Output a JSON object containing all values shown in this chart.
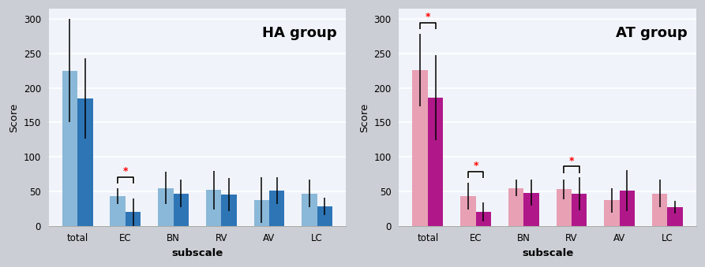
{
  "categories": [
    "total",
    "EC",
    "BN",
    "RV",
    "AV",
    "LC"
  ],
  "ha_pre": [
    225,
    43,
    55,
    52,
    37,
    47
  ],
  "ha_post": [
    185,
    20,
    47,
    45,
    51,
    28
  ],
  "ha_pre_err": [
    75,
    12,
    23,
    28,
    33,
    20
  ],
  "ha_post_err": [
    58,
    20,
    20,
    24,
    20,
    13
  ],
  "at_pre": [
    226,
    43,
    55,
    53,
    37,
    47
  ],
  "at_post": [
    186,
    20,
    48,
    46,
    51,
    27
  ],
  "at_pre_err": [
    53,
    20,
    12,
    14,
    18,
    20
  ],
  "at_post_err": [
    62,
    14,
    19,
    24,
    30,
    9
  ],
  "ha_color_pre": "#8ab8d8",
  "ha_color_post": "#2e75b6",
  "at_color_pre": "#e8a0b4",
  "at_color_post": "#b0188a",
  "ha_sig": [
    false,
    true,
    false,
    false,
    false,
    false
  ],
  "at_sig": [
    true,
    true,
    false,
    true,
    false,
    false
  ],
  "ha_title": "HA group",
  "at_title": "AT group",
  "ylabel": "Score",
  "xlabel": "subscale",
  "ylim": [
    0,
    315
  ],
  "yticks": [
    0,
    50,
    100,
    150,
    200,
    250,
    300
  ],
  "fig_bg": "#dce0e8",
  "plot_bg": "#f0f4fa",
  "grid_color": "#ffffff",
  "bar_width": 0.32
}
